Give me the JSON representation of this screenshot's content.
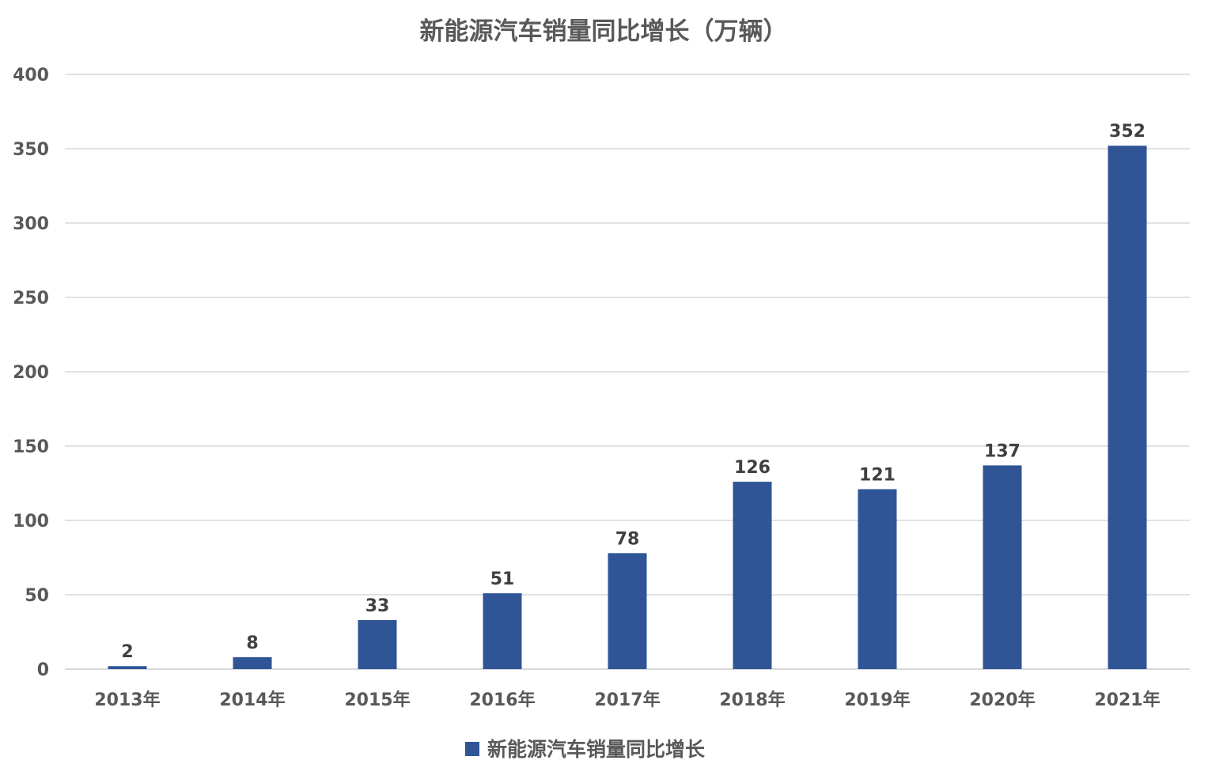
{
  "chart_data": {
    "type": "bar",
    "title": "新能源汽车销量同比增长（万辆）",
    "categories": [
      "2013年",
      "2014年",
      "2015年",
      "2016年",
      "2017年",
      "2018年",
      "2019年",
      "2020年",
      "2021年"
    ],
    "series": [
      {
        "name": "新能源汽车销量同比增长",
        "values": [
          2,
          8,
          33,
          51,
          78,
          126,
          121,
          137,
          352
        ],
        "color": "#2f5597"
      }
    ],
    "ylim": [
      0,
      400
    ],
    "yticks": [
      0,
      50,
      100,
      150,
      200,
      250,
      300,
      350,
      400
    ],
    "grid": true,
    "legend": "bottom"
  }
}
